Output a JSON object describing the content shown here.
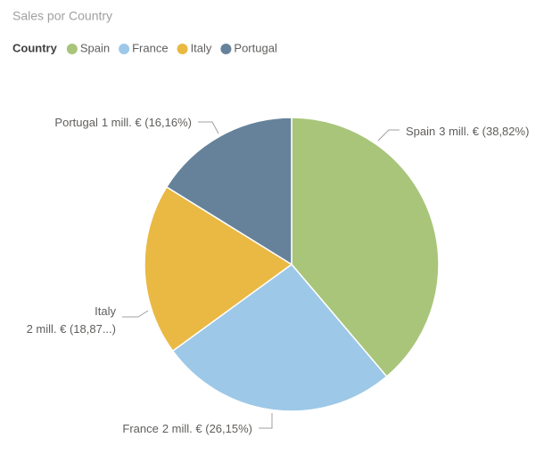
{
  "chart_data": {
    "type": "pie",
    "title": "Sales por Country",
    "legend_title": "Country",
    "categories": [
      "Spain",
      "France",
      "Italy",
      "Portugal"
    ],
    "values": [
      38.82,
      26.15,
      18.87,
      16.16
    ],
    "value_labels": [
      "3 mill. € (38,82%)",
      "2 mill. € (26,15%)",
      "2 mill. € (18,87...)",
      "1 mill. € (16,16%)"
    ],
    "colors": [
      "#a8c57a",
      "#9dc8e8",
      "#e9b944",
      "#66829b"
    ],
    "legend": "top-left"
  }
}
